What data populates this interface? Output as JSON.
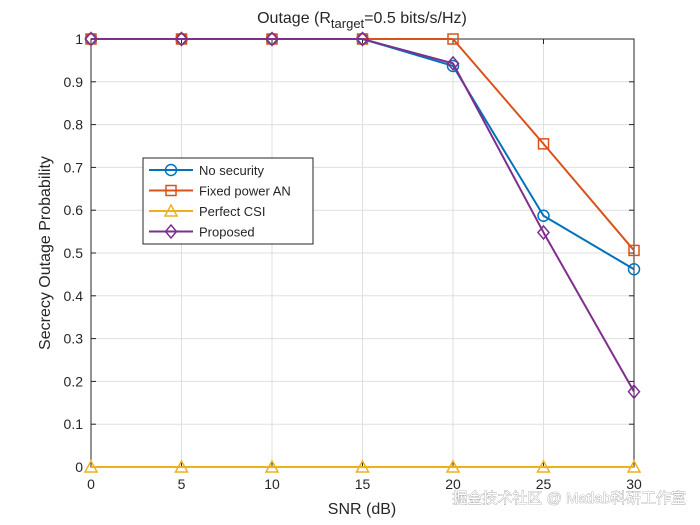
{
  "chart_data": {
    "type": "line",
    "title_main": "Outage (R",
    "title_sub": "target",
    "title_rest": "=0.5 bits/s/Hz)",
    "xlabel": "SNR (dB)",
    "ylabel": "Secrecy Outage Probability",
    "xlim": [
      0,
      30
    ],
    "ylim": [
      0,
      1
    ],
    "xticks": [
      0,
      5,
      10,
      15,
      20,
      25,
      30
    ],
    "yticks": [
      0,
      0.1,
      0.2,
      0.3,
      0.4,
      0.5,
      0.6,
      0.7,
      0.8,
      0.9,
      1
    ],
    "x": [
      0,
      5,
      10,
      15,
      20,
      25,
      30
    ],
    "grid": true,
    "legend_position": "left-middle",
    "series": [
      {
        "name": "No security",
        "marker": "circle",
        "color": "#0072BD",
        "values": [
          1,
          1,
          1,
          1,
          0.937,
          0.587,
          0.462
        ]
      },
      {
        "name": "Fixed power AN",
        "marker": "square",
        "color": "#D95319",
        "values": [
          1,
          1,
          1,
          1,
          1,
          0.755,
          0.506
        ]
      },
      {
        "name": "Perfect CSI",
        "marker": "triangle",
        "color": "#EDB120",
        "values": [
          0,
          0,
          0,
          0,
          0,
          0,
          0
        ]
      },
      {
        "name": "Proposed",
        "marker": "diamond",
        "color": "#7E2F8E",
        "values": [
          1,
          1,
          1,
          1,
          0.943,
          0.548,
          0.176
        ]
      }
    ]
  },
  "watermark": "掘金技术社区 @ Matlab科研工作室"
}
